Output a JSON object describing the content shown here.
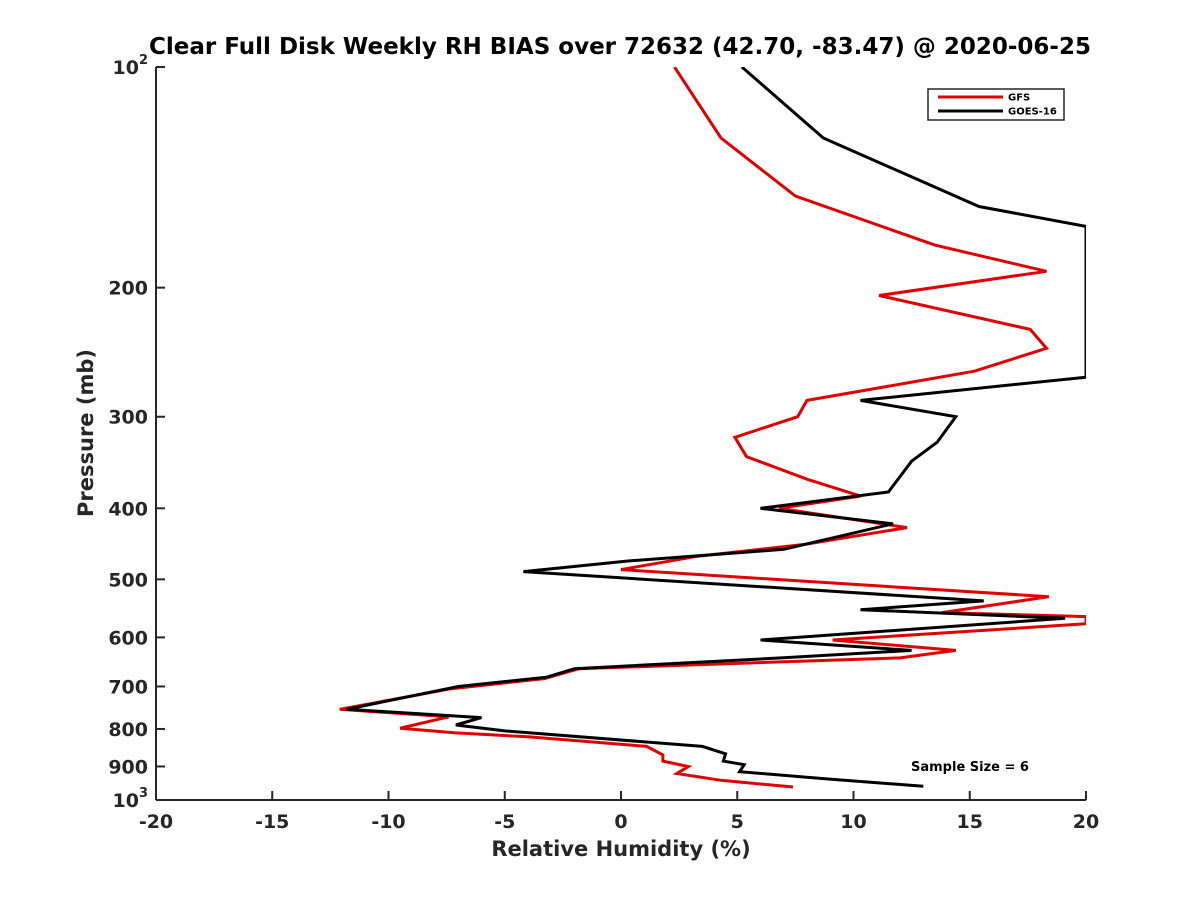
{
  "chart_data": {
    "type": "line",
    "title": "Clear Full Disk Weekly RH BIAS over 72632 (42.70, -83.47) @ 2020-06-25",
    "xlabel": "Relative Humidity (%)",
    "ylabel": "Pressure (mb)",
    "xlim": [
      -20,
      20
    ],
    "ylim": [
      100,
      1000
    ],
    "y_scale": "log",
    "y_reversed": true,
    "grid": false,
    "legend_position": "top-right",
    "x_ticks": [
      -20,
      -15,
      -10,
      -5,
      0,
      5,
      10,
      15,
      20
    ],
    "x_tick_labels": [
      "-20",
      "-15",
      "-10",
      "-5",
      "0",
      "5",
      "10",
      "15",
      "20"
    ],
    "y_ticks": [
      100,
      200,
      300,
      400,
      500,
      600,
      700,
      800,
      900,
      1000
    ],
    "y_tick_labels": [
      {
        "base": "10",
        "sup": "2"
      },
      {
        "base": "200",
        "sup": ""
      },
      {
        "base": "300",
        "sup": ""
      },
      {
        "base": "400",
        "sup": ""
      },
      {
        "base": "500",
        "sup": ""
      },
      {
        "base": "600",
        "sup": ""
      },
      {
        "base": "700",
        "sup": ""
      },
      {
        "base": "800",
        "sup": ""
      },
      {
        "base": "900",
        "sup": ""
      },
      {
        "base": "10",
        "sup": "3"
      }
    ],
    "series": [
      {
        "name": "GFS",
        "color": "#e00000",
        "points": [
          [
            2.3,
            100
          ],
          [
            4.3,
            125
          ],
          [
            7.5,
            150
          ],
          [
            13.5,
            175
          ],
          [
            18.3,
            190
          ],
          [
            11.1,
            205
          ],
          [
            17.6,
            228
          ],
          [
            18.3,
            242
          ],
          [
            15.2,
            260
          ],
          [
            8.0,
            285
          ],
          [
            7.6,
            300
          ],
          [
            4.9,
            320
          ],
          [
            5.4,
            340
          ],
          [
            8.0,
            365
          ],
          [
            10.3,
            385
          ],
          [
            6.8,
            400
          ],
          [
            12.3,
            425
          ],
          [
            7.9,
            448
          ],
          [
            3.3,
            465
          ],
          [
            0.0,
            485
          ],
          [
            18.4,
            528
          ],
          [
            13.8,
            555
          ],
          [
            20.0,
            562
          ],
          [
            20.0,
            575
          ],
          [
            9.1,
            605
          ],
          [
            14.4,
            625
          ],
          [
            12.0,
            640
          ],
          [
            -1.8,
            662
          ],
          [
            -3.3,
            683
          ],
          [
            -7.3,
            705
          ],
          [
            -12.1,
            752
          ],
          [
            -7.4,
            770
          ],
          [
            -9.5,
            798
          ],
          [
            -7.1,
            810
          ],
          [
            -4.0,
            820
          ],
          [
            1.1,
            845
          ],
          [
            1.8,
            868
          ],
          [
            1.8,
            885
          ],
          [
            2.9,
            900
          ],
          [
            2.4,
            920
          ],
          [
            4.3,
            940
          ],
          [
            7.4,
            960
          ]
        ]
      },
      {
        "name": "GOES-16",
        "color": "#000000",
        "points": [
          [
            5.2,
            100
          ],
          [
            8.7,
            125
          ],
          [
            15.4,
            155
          ],
          [
            20.0,
            165
          ],
          [
            20.0,
            265
          ],
          [
            10.3,
            285
          ],
          [
            14.4,
            300
          ],
          [
            13.6,
            325
          ],
          [
            12.5,
            345
          ],
          [
            11.5,
            380
          ],
          [
            6.0,
            400
          ],
          [
            11.7,
            420
          ],
          [
            7.0,
            455
          ],
          [
            0.3,
            472
          ],
          [
            -4.2,
            488
          ],
          [
            15.6,
            535
          ],
          [
            10.3,
            550
          ],
          [
            19.1,
            565
          ],
          [
            6.0,
            605
          ],
          [
            12.5,
            625
          ],
          [
            6.9,
            640
          ],
          [
            -2.0,
            662
          ],
          [
            -3.2,
            680
          ],
          [
            -7.0,
            700
          ],
          [
            -11.8,
            752
          ],
          [
            -6.0,
            772
          ],
          [
            -7.1,
            790
          ],
          [
            -5.0,
            805
          ],
          [
            3.5,
            845
          ],
          [
            4.5,
            865
          ],
          [
            4.4,
            885
          ],
          [
            5.3,
            895
          ],
          [
            5.1,
            915
          ],
          [
            8.7,
            935
          ],
          [
            13.0,
            958
          ]
        ]
      }
    ],
    "annotation": "Sample Size = 6"
  }
}
